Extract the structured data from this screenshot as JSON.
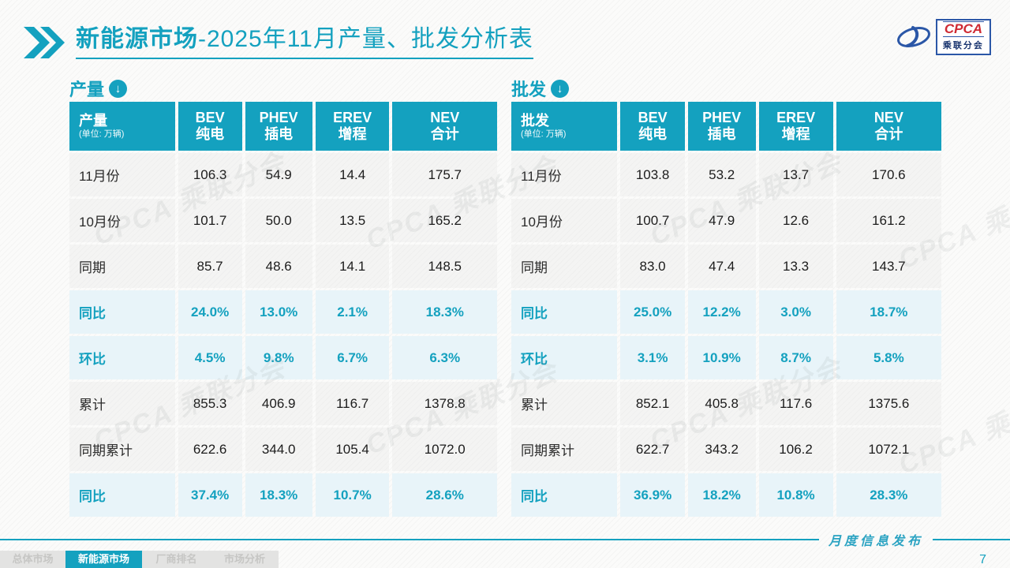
{
  "title": {
    "bold": "新能源市场",
    "rest": "-2025年11月产量、批发分析表"
  },
  "logo": {
    "acronym": "CPCA",
    "name": "乘联分会"
  },
  "watermark": {
    "text": "CPCA 乘联分会"
  },
  "colors": {
    "accent": "#14A1BF",
    "highlight_bg": "#E8F4F9",
    "logo_red": "#CE2A33",
    "logo_blue": "#2B57A7"
  },
  "tables": [
    {
      "section_label": "产量",
      "header": {
        "label": "产量",
        "unit": "(单位: 万辆)",
        "cols": [
          {
            "en": "BEV",
            "zh": "纯电"
          },
          {
            "en": "PHEV",
            "zh": "插电"
          },
          {
            "en": "EREV",
            "zh": "增程"
          },
          {
            "en": "NEV",
            "zh": "合计"
          }
        ]
      },
      "rows": [
        {
          "label": "11月份",
          "values": [
            "106.3",
            "54.9",
            "14.4",
            "175.7"
          ],
          "highlight": false
        },
        {
          "label": "10月份",
          "values": [
            "101.7",
            "50.0",
            "13.5",
            "165.2"
          ],
          "highlight": false
        },
        {
          "label": "同期",
          "values": [
            "85.7",
            "48.6",
            "14.1",
            "148.5"
          ],
          "highlight": false
        },
        {
          "label": "同比",
          "values": [
            "24.0%",
            "13.0%",
            "2.1%",
            "18.3%"
          ],
          "highlight": true
        },
        {
          "label": "环比",
          "values": [
            "4.5%",
            "9.8%",
            "6.7%",
            "6.3%"
          ],
          "highlight": true
        },
        {
          "label": "累计",
          "values": [
            "855.3",
            "406.9",
            "116.7",
            "1378.8"
          ],
          "highlight": false
        },
        {
          "label": "同期累计",
          "values": [
            "622.6",
            "344.0",
            "105.4",
            "1072.0"
          ],
          "highlight": false
        },
        {
          "label": "同比",
          "values": [
            "37.4%",
            "18.3%",
            "10.7%",
            "28.6%"
          ],
          "highlight": true
        }
      ]
    },
    {
      "section_label": "批发",
      "header": {
        "label": "批发",
        "unit": "(单位: 万辆)",
        "cols": [
          {
            "en": "BEV",
            "zh": "纯电"
          },
          {
            "en": "PHEV",
            "zh": "插电"
          },
          {
            "en": "EREV",
            "zh": "增程"
          },
          {
            "en": "NEV",
            "zh": "合计"
          }
        ]
      },
      "rows": [
        {
          "label": "11月份",
          "values": [
            "103.8",
            "53.2",
            "13.7",
            "170.6"
          ],
          "highlight": false
        },
        {
          "label": "10月份",
          "values": [
            "100.7",
            "47.9",
            "12.6",
            "161.2"
          ],
          "highlight": false
        },
        {
          "label": "同期",
          "values": [
            "83.0",
            "47.4",
            "13.3",
            "143.7"
          ],
          "highlight": false
        },
        {
          "label": "同比",
          "values": [
            "25.0%",
            "12.2%",
            "3.0%",
            "18.7%"
          ],
          "highlight": true
        },
        {
          "label": "环比",
          "values": [
            "3.1%",
            "10.9%",
            "8.7%",
            "5.8%"
          ],
          "highlight": true
        },
        {
          "label": "累计",
          "values": [
            "852.1",
            "405.8",
            "117.6",
            "1375.6"
          ],
          "highlight": false
        },
        {
          "label": "同期累计",
          "values": [
            "622.7",
            "343.2",
            "106.2",
            "1072.1"
          ],
          "highlight": false
        },
        {
          "label": "同比",
          "values": [
            "36.9%",
            "18.2%",
            "10.8%",
            "28.3%"
          ],
          "highlight": true
        }
      ]
    }
  ],
  "footer": {
    "tabs": [
      {
        "label": "总体市场",
        "active": false
      },
      {
        "label": "新能源市场",
        "active": true
      },
      {
        "label": "厂商排名",
        "active": false
      },
      {
        "label": "市场分析",
        "active": false
      }
    ],
    "release_label": "月度信息发布",
    "page_number": "7"
  }
}
